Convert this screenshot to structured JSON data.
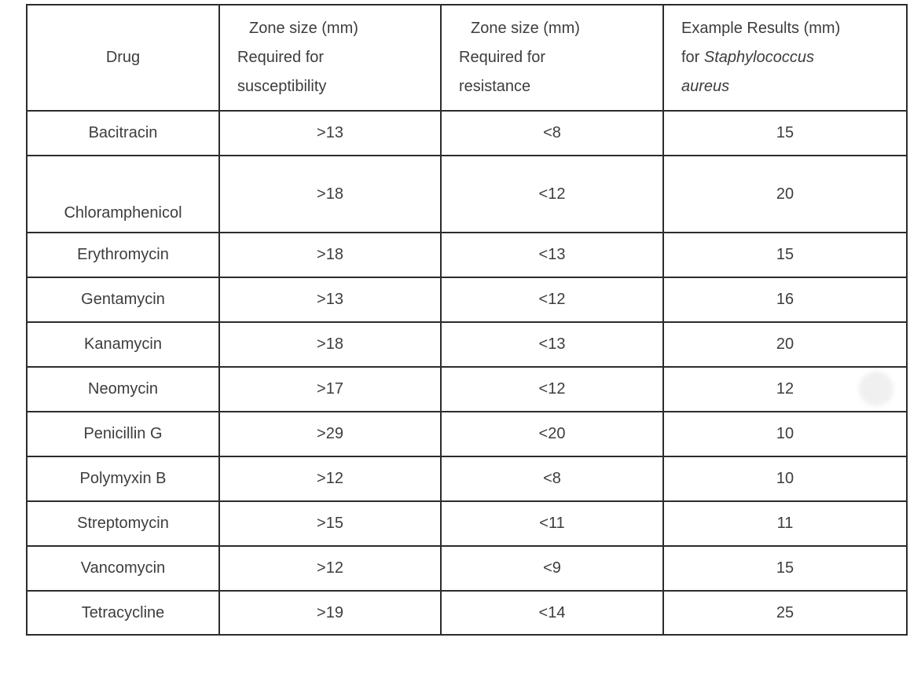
{
  "colors": {
    "background": "#ffffff",
    "text": "#3d3d3d",
    "border": "#2c2c2c",
    "smudge": "#f0f0f0"
  },
  "table": {
    "header": {
      "drug": {
        "lines": [
          "Drug"
        ]
      },
      "susceptibility": {
        "lines": [
          "Zone size (mm)",
          "Required for",
          "susceptibility"
        ]
      },
      "resistance": {
        "lines": [
          "Zone size (mm)",
          "Required for",
          "resistance"
        ]
      },
      "example": {
        "line1": "Example Results (mm)",
        "line2_prefix": "for ",
        "line2_italic": "Staphylococcus aureus"
      }
    },
    "rows": [
      {
        "drug": "Bacitracin",
        "susceptibility": ">13",
        "resistance": "<8",
        "example": "15"
      },
      {
        "drug": "Chloramphenicol",
        "susceptibility": ">18",
        "resistance": "<12",
        "example": "20"
      },
      {
        "drug": "Erythromycin",
        "susceptibility": ">18",
        "resistance": "<13",
        "example": "15"
      },
      {
        "drug": "Gentamycin",
        "susceptibility": ">13",
        "resistance": "<12",
        "example": "16"
      },
      {
        "drug": "Kanamycin",
        "susceptibility": ">18",
        "resistance": "<13",
        "example": "20"
      },
      {
        "drug": "Neomycin",
        "susceptibility": ">17",
        "resistance": "<12",
        "example": "12"
      },
      {
        "drug": "Penicillin G",
        "susceptibility": ">29",
        "resistance": "<20",
        "example": "10"
      },
      {
        "drug": "Polymyxin B",
        "susceptibility": ">12",
        "resistance": "<8",
        "example": "10"
      },
      {
        "drug": "Streptomycin",
        "susceptibility": ">15",
        "resistance": "<11",
        "example": "11"
      },
      {
        "drug": "Vancomycin",
        "susceptibility": ">12",
        "resistance": "<9",
        "example": "15"
      },
      {
        "drug": "Tetracycline",
        "susceptibility": ">19",
        "resistance": "<14",
        "example": "25"
      }
    ]
  },
  "chart_data": {
    "type": "table",
    "title": "",
    "columns": [
      "Drug",
      "Zone size (mm) Required for susceptibility",
      "Zone size (mm) Required for resistance",
      "Example Results (mm) for Staphylococcus aureus"
    ],
    "rows": [
      [
        "Bacitracin",
        ">13",
        "<8",
        "15"
      ],
      [
        "Chloramphenicol",
        ">18",
        "<12",
        "20"
      ],
      [
        "Erythromycin",
        ">18",
        "<13",
        "15"
      ],
      [
        "Gentamycin",
        ">13",
        "<12",
        "16"
      ],
      [
        "Kanamycin",
        ">18",
        "<13",
        "20"
      ],
      [
        "Neomycin",
        ">17",
        "<12",
        "12"
      ],
      [
        "Penicillin G",
        ">29",
        "<20",
        "10"
      ],
      [
        "Polymyxin B",
        ">12",
        "<8",
        "10"
      ],
      [
        "Streptomycin",
        ">15",
        "<11",
        "11"
      ],
      [
        "Vancomycin",
        ">12",
        "<9",
        "15"
      ],
      [
        "Tetracycline",
        ">19",
        "<14",
        "25"
      ]
    ]
  }
}
